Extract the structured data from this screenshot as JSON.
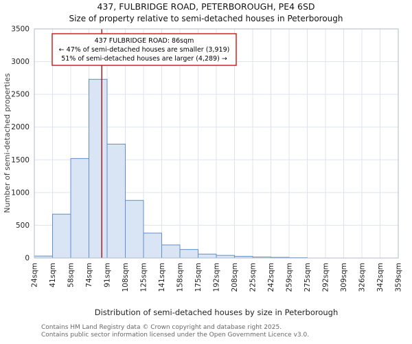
{
  "header": {
    "title": "437, FULBRIDGE ROAD, PETERBOROUGH, PE4 6SD",
    "subtitle": "Size of property relative to semi-detached houses in Peterborough"
  },
  "annotation": {
    "line1": "437 FULBRIDGE ROAD: 86sqm",
    "line2": "← 47% of semi-detached houses are smaller (3,919)",
    "line3": "51% of semi-detached houses are larger (4,289) →"
  },
  "footer": {
    "line1": "Contains HM Land Registry data © Crown copyright and database right 2025.",
    "line2": "Contains public sector information licensed under the Open Government Licence v3.0."
  },
  "chart_data": {
    "type": "bar",
    "title": "437, FULBRIDGE ROAD, PETERBOROUGH, PE4 6SD",
    "subtitle": "Size of property relative to semi-detached houses in Peterborough",
    "xlabel": "Distribution of semi-detached houses by size in Peterborough",
    "ylabel": "Number of semi-detached properties",
    "bin_edges": [
      24,
      41,
      58,
      74,
      91,
      108,
      125,
      141,
      158,
      175,
      192,
      208,
      225,
      242,
      259,
      275,
      292,
      309,
      326,
      342,
      359
    ],
    "bin_labels": [
      "24sqm",
      "41sqm",
      "58sqm",
      "74sqm",
      "91sqm",
      "108sqm",
      "125sqm",
      "141sqm",
      "158sqm",
      "175sqm",
      "192sqm",
      "208sqm",
      "225sqm",
      "242sqm",
      "259sqm",
      "275sqm",
      "292sqm",
      "309sqm",
      "326sqm",
      "342sqm",
      "359sqm"
    ],
    "values": [
      30,
      670,
      1520,
      2730,
      1740,
      880,
      380,
      200,
      130,
      60,
      40,
      25,
      15,
      10,
      5,
      0,
      0,
      0,
      0,
      0
    ],
    "marker_value": 86,
    "marker_label": "437 FULBRIDGE ROAD: 86sqm",
    "ylim": [
      0,
      3500
    ],
    "yticks": [
      0,
      500,
      1000,
      1500,
      2000,
      2500,
      3000,
      3500
    ],
    "grid": true,
    "legend": "none",
    "bar_color": "#d9e5f5",
    "bar_edge_color": "#638dc7",
    "grid_color": "#dde3ee",
    "frame_color": "#b0bac9",
    "marker_color": "#990000",
    "annotation_border_color": "#cc0000"
  }
}
